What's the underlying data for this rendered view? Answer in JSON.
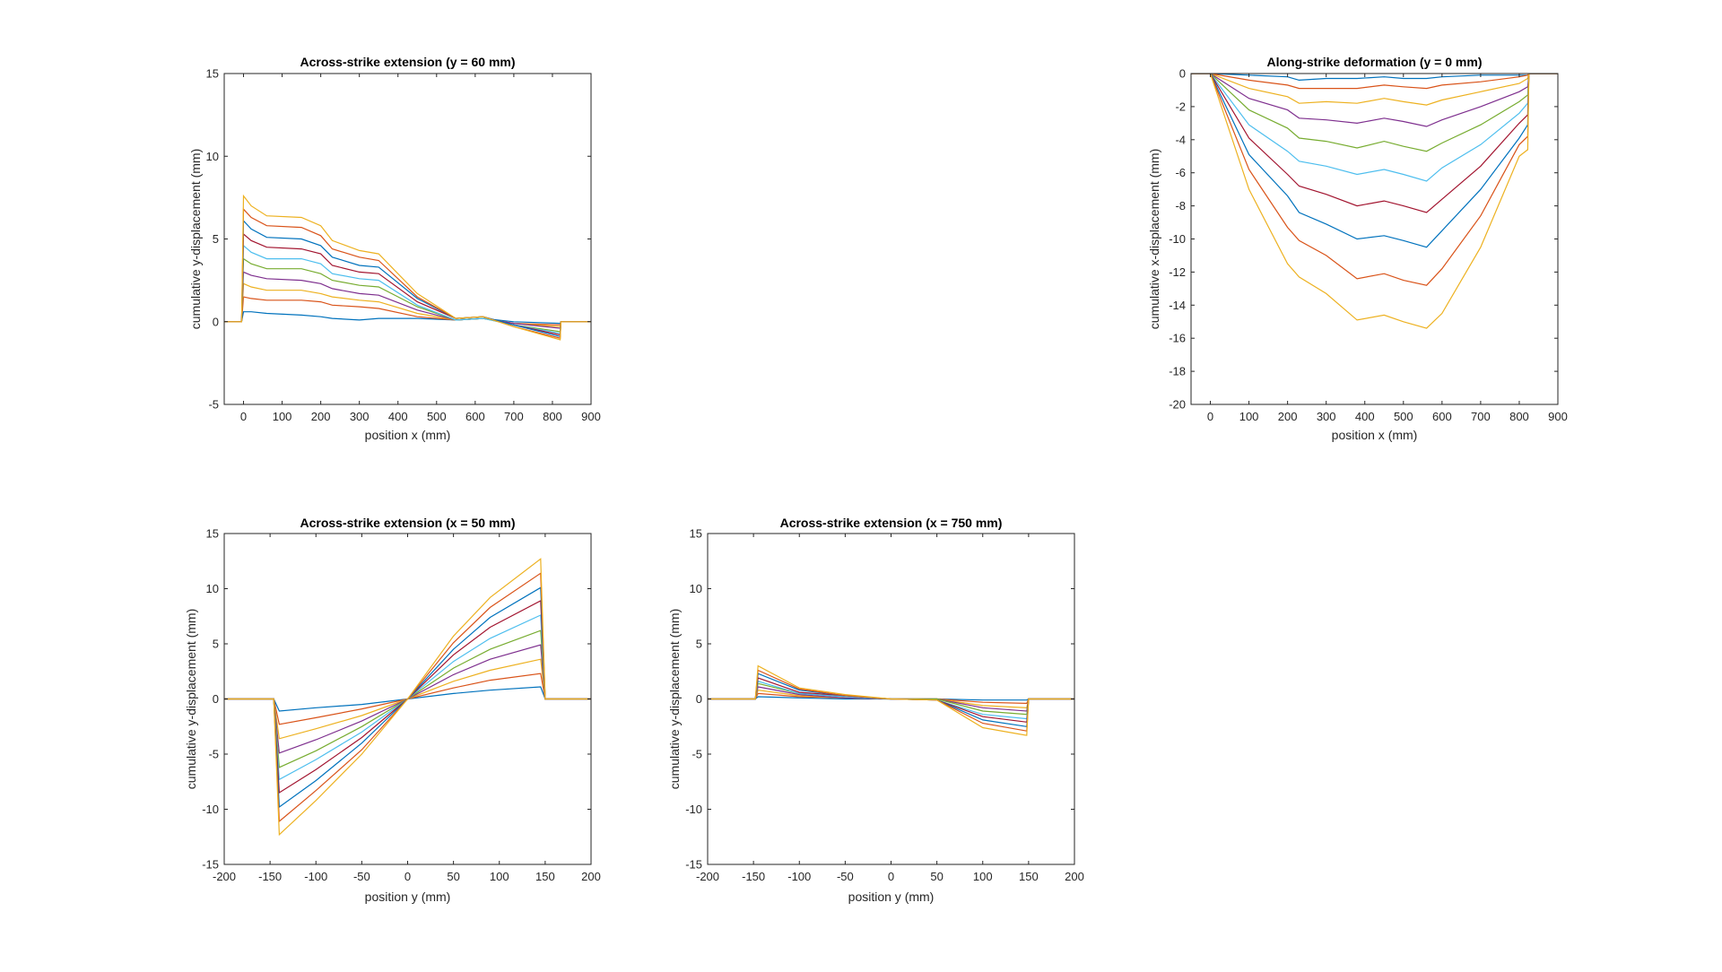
{
  "figure": {
    "colors": [
      "#0072BD",
      "#D95319",
      "#EDB120",
      "#7E2F8E",
      "#77AC30",
      "#4DBEEE",
      "#A2142F",
      "#0072BD",
      "#D95319",
      "#EDB120"
    ]
  },
  "chart_data": [
    {
      "type": "line",
      "title": "Across-strike extension (y = 60 mm)",
      "xlabel": "position x (mm)",
      "ylabel": "cumulative y-displacement (mm)",
      "xlim": [
        -50,
        900
      ],
      "ylim": [
        -5,
        15
      ],
      "xticks": [
        0,
        100,
        200,
        300,
        400,
        500,
        600,
        700,
        800,
        900
      ],
      "yticks": [
        -5,
        0,
        5,
        10,
        15
      ],
      "grid": false,
      "box": true,
      "x": [
        -50,
        -5,
        0,
        20,
        60,
        150,
        200,
        230,
        300,
        350,
        450,
        550,
        620,
        700,
        820,
        822,
        900
      ],
      "series": [
        {
          "values": [
            0,
            0,
            0.6,
            0.6,
            0.5,
            0.4,
            0.3,
            0.2,
            0.1,
            0.2,
            0.2,
            0.1,
            0.2,
            0.0,
            -0.1,
            0,
            0
          ]
        },
        {
          "values": [
            0,
            0,
            1.5,
            1.4,
            1.3,
            1.3,
            1.2,
            1.0,
            0.9,
            0.8,
            0.3,
            0.1,
            0.2,
            -0.1,
            -0.2,
            0,
            0
          ]
        },
        {
          "values": [
            0,
            0,
            2.3,
            2.1,
            1.9,
            1.9,
            1.7,
            1.5,
            1.3,
            1.2,
            0.5,
            0.1,
            0.2,
            -0.1,
            -0.3,
            0,
            0
          ]
        },
        {
          "values": [
            0,
            0,
            3.0,
            2.8,
            2.6,
            2.5,
            2.3,
            2.0,
            1.7,
            1.6,
            0.7,
            0.1,
            0.2,
            -0.1,
            -0.4,
            0,
            0
          ]
        },
        {
          "values": [
            0,
            0,
            3.8,
            3.5,
            3.2,
            3.2,
            2.9,
            2.5,
            2.2,
            2.1,
            0.9,
            0.1,
            0.2,
            -0.2,
            -0.6,
            0,
            0
          ]
        },
        {
          "values": [
            0,
            0,
            4.6,
            4.2,
            3.8,
            3.8,
            3.5,
            2.9,
            2.6,
            2.5,
            1.0,
            0.1,
            0.2,
            -0.2,
            -0.7,
            0,
            0
          ]
        },
        {
          "values": [
            0,
            0,
            5.3,
            4.9,
            4.5,
            4.4,
            4.1,
            3.4,
            3.0,
            2.9,
            1.2,
            0.2,
            0.3,
            -0.2,
            -0.8,
            0,
            0
          ]
        },
        {
          "values": [
            0,
            0,
            6.1,
            5.6,
            5.1,
            5.0,
            4.6,
            3.9,
            3.4,
            3.3,
            1.4,
            0.2,
            0.3,
            -0.2,
            -0.9,
            0,
            0
          ]
        },
        {
          "values": [
            0,
            0,
            6.8,
            6.3,
            5.8,
            5.7,
            5.2,
            4.4,
            3.9,
            3.7,
            1.5,
            0.2,
            0.3,
            -0.3,
            -1.0,
            0,
            0
          ]
        },
        {
          "values": [
            0,
            0,
            7.6,
            7.0,
            6.4,
            6.3,
            5.8,
            4.9,
            4.3,
            4.1,
            1.7,
            0.2,
            0.3,
            -0.3,
            -1.1,
            0,
            0
          ]
        }
      ]
    },
    {
      "type": "line",
      "title": "Along-strike deformation (y = 0 mm)",
      "xlabel": "position x (mm)",
      "ylabel": "cumulative x-displacement (mm)",
      "xlim": [
        -50,
        900
      ],
      "ylim": [
        -20,
        0
      ],
      "xticks": [
        0,
        100,
        200,
        300,
        400,
        500,
        600,
        700,
        800,
        900
      ],
      "yticks": [
        -20,
        -18,
        -16,
        -14,
        -12,
        -10,
        -8,
        -6,
        -4,
        -2,
        0
      ],
      "grid": false,
      "box": true,
      "x": [
        -50,
        -5,
        0,
        100,
        200,
        230,
        300,
        380,
        450,
        500,
        560,
        600,
        700,
        800,
        822,
        825,
        900
      ],
      "series": [
        {
          "values": [
            0,
            0,
            0,
            -0.1,
            -0.2,
            -0.4,
            -0.3,
            -0.3,
            -0.2,
            -0.3,
            -0.3,
            -0.2,
            -0.1,
            -0.1,
            -0.1,
            0,
            0
          ]
        },
        {
          "values": [
            0,
            0,
            0,
            -0.4,
            -0.7,
            -0.9,
            -0.9,
            -0.9,
            -0.7,
            -0.8,
            -0.9,
            -0.7,
            -0.5,
            -0.2,
            -0.1,
            0,
            0
          ]
        },
        {
          "values": [
            0,
            0,
            0,
            -0.9,
            -1.4,
            -1.8,
            -1.7,
            -1.8,
            -1.5,
            -1.7,
            -1.9,
            -1.6,
            -1.1,
            -0.6,
            -0.3,
            0,
            0
          ]
        },
        {
          "values": [
            0,
            0,
            0,
            -1.5,
            -2.2,
            -2.7,
            -2.8,
            -3.0,
            -2.7,
            -2.9,
            -3.2,
            -2.8,
            -2.0,
            -1.1,
            -0.8,
            0,
            0
          ]
        },
        {
          "values": [
            0,
            0,
            0,
            -2.2,
            -3.3,
            -3.9,
            -4.1,
            -4.5,
            -4.1,
            -4.4,
            -4.7,
            -4.2,
            -3.1,
            -1.7,
            -1.3,
            0,
            0
          ]
        },
        {
          "values": [
            0,
            0,
            0,
            -3.1,
            -4.7,
            -5.3,
            -5.6,
            -6.1,
            -5.8,
            -6.1,
            -6.5,
            -5.7,
            -4.3,
            -2.4,
            -1.8,
            0,
            0
          ]
        },
        {
          "values": [
            0,
            0,
            0,
            -3.9,
            -6.1,
            -6.8,
            -7.3,
            -8.0,
            -7.7,
            -8.0,
            -8.4,
            -7.6,
            -5.6,
            -3.0,
            -2.5,
            0,
            0
          ]
        },
        {
          "values": [
            0,
            0,
            0,
            -4.9,
            -7.4,
            -8.4,
            -9.1,
            -10.0,
            -9.8,
            -10.1,
            -10.5,
            -9.5,
            -7.0,
            -3.9,
            -3.1,
            0,
            0
          ]
        },
        {
          "values": [
            0,
            0,
            0,
            -5.8,
            -9.3,
            -10.1,
            -11.0,
            -12.4,
            -12.1,
            -12.5,
            -12.8,
            -11.8,
            -8.6,
            -4.3,
            -3.8,
            0,
            0
          ]
        },
        {
          "values": [
            0,
            0,
            0,
            -7.0,
            -11.5,
            -12.3,
            -13.3,
            -14.9,
            -14.6,
            -15.0,
            -15.4,
            -14.5,
            -10.5,
            -5.0,
            -4.6,
            0,
            0
          ]
        }
      ]
    },
    {
      "type": "line",
      "title": "Across-strike extension (x = 50 mm)",
      "xlabel": "position y (mm)",
      "ylabel": "cumulative y-displacement (mm)",
      "xlim": [
        -200,
        200
      ],
      "ylim": [
        -15,
        15
      ],
      "xticks": [
        -200,
        -150,
        -100,
        -50,
        0,
        50,
        100,
        150,
        200
      ],
      "yticks": [
        -15,
        -10,
        -5,
        0,
        5,
        10,
        15
      ],
      "grid": false,
      "box": true,
      "x": [
        -200,
        -146,
        -140,
        -100,
        -50,
        0,
        50,
        90,
        145,
        150,
        200
      ],
      "series": [
        {
          "values": [
            0,
            0,
            -1.1,
            -0.8,
            -0.5,
            0,
            0.5,
            0.8,
            1.1,
            0,
            0
          ]
        },
        {
          "values": [
            0,
            0,
            -2.3,
            -1.7,
            -0.9,
            0,
            1.0,
            1.7,
            2.3,
            0,
            0
          ]
        },
        {
          "values": [
            0,
            0,
            -3.6,
            -2.7,
            -1.5,
            0,
            1.6,
            2.6,
            3.6,
            0,
            0
          ]
        },
        {
          "values": [
            0,
            0,
            -4.9,
            -3.7,
            -2.0,
            0,
            2.2,
            3.6,
            4.9,
            0,
            0
          ]
        },
        {
          "values": [
            0,
            0,
            -6.2,
            -4.7,
            -2.5,
            0,
            2.8,
            4.5,
            6.2,
            0,
            0
          ]
        },
        {
          "values": [
            0,
            0,
            -7.3,
            -5.5,
            -3.0,
            0,
            3.4,
            5.5,
            7.6,
            0,
            0
          ]
        },
        {
          "values": [
            0,
            0,
            -8.5,
            -6.4,
            -3.5,
            0,
            4.0,
            6.5,
            8.9,
            0,
            0
          ]
        },
        {
          "values": [
            0,
            0,
            -9.8,
            -7.4,
            -4.0,
            0,
            4.5,
            7.4,
            10.1,
            0,
            0
          ]
        },
        {
          "values": [
            0,
            0,
            -11.1,
            -8.3,
            -4.6,
            0,
            5.1,
            8.3,
            11.4,
            0,
            0
          ]
        },
        {
          "values": [
            0,
            0,
            -12.3,
            -9.2,
            -5.0,
            0,
            5.7,
            9.2,
            12.7,
            0,
            0
          ]
        }
      ]
    },
    {
      "type": "line",
      "title": "Across-strike extension (x = 750 mm)",
      "xlabel": "position y (mm)",
      "ylabel": "cumulative y-displacement (mm)",
      "xlim": [
        -200,
        200
      ],
      "ylim": [
        -15,
        15
      ],
      "xticks": [
        -200,
        -150,
        -100,
        -50,
        0,
        50,
        100,
        150,
        200
      ],
      "yticks": [
        -15,
        -10,
        -5,
        0,
        5,
        10,
        15
      ],
      "grid": false,
      "box": true,
      "x": [
        -200,
        -148,
        -145,
        -100,
        -50,
        0,
        50,
        100,
        148,
        150,
        200
      ],
      "series": [
        {
          "values": [
            0,
            0,
            0.2,
            0.1,
            0.0,
            0,
            0.0,
            -0.1,
            -0.1,
            0,
            0
          ]
        },
        {
          "values": [
            0,
            0,
            0.5,
            0.2,
            0.1,
            0,
            0.0,
            -0.3,
            -0.4,
            0,
            0
          ]
        },
        {
          "values": [
            0,
            0,
            0.8,
            0.3,
            0.1,
            0,
            0.0,
            -0.6,
            -0.8,
            0,
            0
          ]
        },
        {
          "values": [
            0,
            0,
            1.1,
            0.4,
            0.1,
            0,
            0.0,
            -0.8,
            -1.1,
            0,
            0
          ]
        },
        {
          "values": [
            0,
            0,
            1.4,
            0.5,
            0.2,
            0,
            0.0,
            -1.1,
            -1.4,
            0,
            0
          ]
        },
        {
          "values": [
            0,
            0,
            1.6,
            0.5,
            0.2,
            0,
            -0.1,
            -1.4,
            -1.8,
            0,
            0
          ]
        },
        {
          "values": [
            0,
            0,
            1.9,
            0.6,
            0.3,
            0,
            -0.1,
            -1.6,
            -2.1,
            0,
            0
          ]
        },
        {
          "values": [
            0,
            0,
            2.3,
            0.8,
            0.3,
            0,
            -0.1,
            -1.9,
            -2.5,
            0,
            0
          ]
        },
        {
          "values": [
            0,
            0,
            2.6,
            0.9,
            0.3,
            0,
            -0.1,
            -2.2,
            -2.9,
            0,
            0
          ]
        },
        {
          "values": [
            0,
            0,
            3.0,
            1.0,
            0.4,
            0,
            -0.1,
            -2.6,
            -3.3,
            0,
            0
          ]
        }
      ]
    }
  ]
}
